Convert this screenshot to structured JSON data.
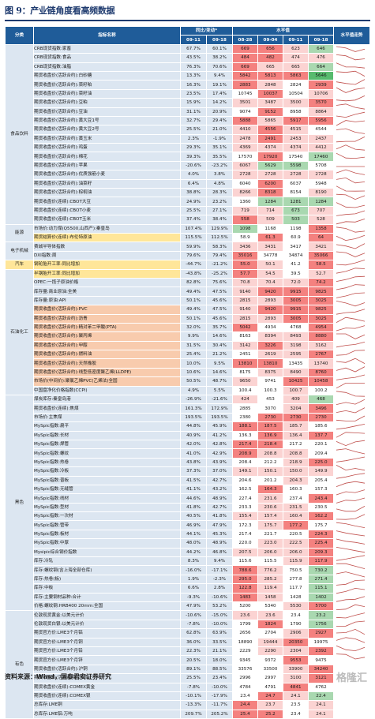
{
  "title": "图 9：产业链角度看高频数据",
  "source": "资料来源：Wind，国泰君安证券研究",
  "watermark": "格隆汇",
  "headers": {
    "category": "分类",
    "indicator": "指标名称",
    "yoy": "同比/变动*",
    "level": "水平值",
    "trend": "水平值走势",
    "dates_yoy": [
      "09-11",
      "09-18"
    ],
    "dates_level": [
      "08-28",
      "09-04",
      "09-11",
      "09-18"
    ]
  },
  "colors": {
    "header": "#1f5c99",
    "name_bg": "#dce6f1",
    "highlight": "#ffe699",
    "red": "#f4817f",
    "green": "#57bb6e"
  },
  "groups": [
    {
      "name": "食品饮料",
      "rows": [
        [
          "CRB现货指数:家畜",
          "67.7%",
          "60.1%",
          "669",
          "656",
          "623",
          "646",
          "r",
          "r",
          "p",
          "g"
        ],
        [
          "CRB现货指数:食品",
          "43.5%",
          "38.2%",
          "484",
          "482",
          "474",
          "476",
          "r",
          "r",
          "p",
          "p"
        ],
        [
          "CRB现货指数:油脂",
          "76.3%",
          "70.6%",
          "669",
          "665",
          "665",
          "664",
          "r",
          "p",
          "p",
          "g"
        ],
        [
          "期货收盘价(活跃合约):白砂糖",
          "13.3%",
          "9.4%",
          "5842",
          "5813",
          "5863",
          "5646",
          "r",
          "r",
          "r",
          "G"
        ],
        [
          "期货收盘价(活跃合约):菜籽粕",
          "16.3%",
          "19.1%",
          "2883",
          "2848",
          "2824",
          "2939",
          "r",
          "p",
          "w",
          "r"
        ],
        [
          "期货收盘价(活跃合约):菜籽油",
          "23.5%",
          "17.4%",
          "10745",
          "10037",
          "10504",
          "10706",
          "w",
          "r",
          "w",
          "p"
        ],
        [
          "期货收盘价(活跃合约):豆粕",
          "15.9%",
          "14.2%",
          "3501",
          "3487",
          "3500",
          "3570",
          "p",
          "p",
          "p",
          "r"
        ],
        [
          "期货收盘价(活跃合约):豆油",
          "31.1%",
          "20.9%",
          "9074",
          "9152",
          "8958",
          "8864",
          "w",
          "r",
          "w",
          "p"
        ],
        [
          "期货收盘价(活跃合约):黄大豆1号",
          "32.7%",
          "29.4%",
          "5888",
          "5865",
          "5917",
          "5956",
          "r",
          "p",
          "r",
          "r"
        ],
        [
          "期货收盘价(活跃合约):黄大豆2号",
          "25.5%",
          "21.0%",
          "4410",
          "4556",
          "4515",
          "4544",
          "p",
          "r",
          "p",
          "w"
        ],
        [
          "期货收盘价(活跃合约):黄玉米",
          "2.3%",
          "-1.9%",
          "2478",
          "2491",
          "2453",
          "2437",
          "p",
          "r",
          "p",
          "p"
        ],
        [
          "期货收盘价(活跃合约):鸡蛋",
          "29.3%",
          "35.1%",
          "4369",
          "4374",
          "4374",
          "4412",
          "p",
          "p",
          "p",
          "p"
        ],
        [
          "期货收盘价(活跃合约):棉花",
          "39.3%",
          "35.5%",
          "17570",
          "17920",
          "17540",
          "17460",
          "w",
          "r",
          "w",
          "g"
        ],
        [
          "期货收盘价(活跃合约):苹果",
          "-20.6%",
          "-23.2%",
          "6067",
          "5629",
          "5598",
          "5708",
          "p",
          "g",
          "g",
          "w"
        ],
        [
          "期货收盘价(活跃合约):优质强筋小麦",
          "4.0%",
          "3.8%",
          "2728",
          "2728",
          "2728",
          "2728",
          "p",
          "p",
          "p",
          "p"
        ],
        [
          "期货收盘价(活跃合约):油菜籽",
          "6.4%",
          "4.8%",
          "6040",
          "6200",
          "6037",
          "5948",
          "w",
          "r",
          "w",
          "w"
        ],
        [
          "期货收盘价(活跃合约):棕榈油",
          "38.8%",
          "28.3%",
          "8266",
          "8318",
          "8154",
          "8190",
          "p",
          "r",
          "w",
          "p"
        ],
        [
          "期货收盘价(连续):CBOT大豆",
          "24.9%",
          "23.2%",
          "1360",
          "1284",
          "1281",
          "1284",
          "w",
          "g",
          "g",
          "g"
        ],
        [
          "期货收盘价(连续):CBOT小麦",
          "25.5%",
          "27.1%",
          "719",
          "714",
          "673",
          "707",
          "p",
          "p",
          "g",
          "p"
        ],
        [
          "期货收盘价(连续):CBOT玉米",
          "37.4%",
          "38.4%",
          "558",
          "509",
          "503",
          "528",
          "r",
          "p",
          "g",
          "p"
        ]
      ]
    },
    {
      "name": "能源",
      "rows": [
        [
          "市场价:动力煤(Q5500,山西产):秦皇岛",
          "107.4%",
          "129.9%",
          "1098",
          "1168",
          "1198",
          "1358",
          "g",
          "w",
          "w",
          "r"
        ],
        [
          "期货结算价(连续):布伦特原油",
          "115.5%",
          "112.5%",
          "58.9",
          "61.3",
          "60.9",
          "64",
          "w",
          "r",
          "w",
          "r"
        ]
      ]
    },
    {
      "name": "电子机械",
      "rows": [
        [
          "费城半导体指数",
          "59.9%",
          "58.3%",
          "3436",
          "3431",
          "3417",
          "3421",
          "p",
          "p",
          "w",
          "p"
        ],
        [
          "DXI指数:周",
          "79.6%",
          "79.4%",
          "35016",
          "34778",
          "34874",
          "35066",
          "r",
          "w",
          "w",
          "r"
        ]
      ]
    },
    {
      "name": "汽车",
      "rows": [
        [
          "钢轮胎开工率:同比增加",
          "-44.7%",
          "-21.2%",
          "55.0",
          "50.1",
          "41.2",
          "58.5",
          "r",
          "p",
          "w",
          "r"
        ]
      ]
    },
    {
      "name": "石油化工",
      "rows": [
        [
          "半钢胎开工率:同比增加",
          "-43.8%",
          "-25.2%",
          "57.7",
          "54.5",
          "39.5",
          "52.7",
          "r",
          "p",
          "w",
          "p"
        ],
        [
          "OPEC:一揽子原油价格",
          "82.8%",
          "75.6%",
          "70.8",
          "70.4",
          "72.0",
          "74.2",
          "p",
          "p",
          "p",
          "r"
        ],
        [
          "库存量:商业原油:全美",
          "49.4%",
          "47.5%",
          "9140",
          "9420",
          "9915",
          "9825",
          "p",
          "r",
          "r",
          "r"
        ],
        [
          "库存量:原油:API",
          "50.1%",
          "45.6%",
          "2815",
          "2893",
          "3005",
          "3025",
          "p",
          "p",
          "r",
          "r"
        ],
        [
          "期货收盘价(活跃合约):PVC",
          "49.4%",
          "47.5%",
          "9140",
          "9420",
          "9915",
          "9825",
          "p",
          "r",
          "r",
          "r"
        ],
        [
          "期货收盘价(活跃合约):沥青",
          "50.1%",
          "45.6%",
          "2815",
          "2893",
          "3005",
          "3025",
          "p",
          "p",
          "r",
          "r"
        ],
        [
          "期货收盘价(活跃合约):精对苯二甲酸(PTA)",
          "32.0%",
          "35.7%",
          "5042",
          "4934",
          "4768",
          "4954",
          "r",
          "w",
          "w",
          "r"
        ],
        [
          "期货收盘价(活跃合约):聚丙烯",
          "9.9%",
          "14.6%",
          "8163",
          "8394",
          "8493",
          "8880",
          "w",
          "p",
          "p",
          "r"
        ],
        [
          "期货收盘价(活跃合约):甲醇",
          "31.5%",
          "30.4%",
          "3142",
          "3226",
          "3198",
          "3162",
          "p",
          "r",
          "p",
          "p"
        ],
        [
          "期货收盘价(活跃合约):燃料油",
          "25.4%",
          "21.2%",
          "2451",
          "2619",
          "2595",
          "2767",
          "w",
          "p",
          "p",
          "r"
        ],
        [
          "期货收盘价(活跃合约):天然橡胶",
          "10.0%",
          "9.5%",
          "13810",
          "13810",
          "13435",
          "13740",
          "r",
          "r",
          "w",
          "p"
        ],
        [
          "期货收盘价(活跃合约):线型低密度聚乙烯(LLDPE)",
          "10.6%",
          "14.6%",
          "8175",
          "8375",
          "8490",
          "8760",
          "w",
          "p",
          "p",
          "r"
        ],
        [
          "市场价(中间价):聚氯乙烯PVC(乙烯法)全国",
          "50.5%",
          "48.7%",
          "9650",
          "9741",
          "10425",
          "10458",
          "p",
          "w",
          "r",
          "r"
        ],
        [
          "中国盘净化价格指数(CCPI)",
          "4.9%",
          "5.5%",
          "100.4",
          "100.3",
          "100.7",
          "100.2",
          "w",
          "w",
          "p",
          "w"
        ]
      ]
    },
    {
      "name": "黑色",
      "rows": [
        [
          "煤炭库存:秦皇岛港",
          "-26.9%",
          "-21.6%",
          "424",
          "453",
          "409",
          "468",
          "p",
          "w",
          "p",
          "g"
        ],
        [
          "期货收盘价(连续):焦煤",
          "161.3%",
          "172.9%",
          "2885",
          "3070",
          "3204",
          "3496",
          "w",
          "w",
          "p",
          "r"
        ],
        [
          "市场价:主焦煤",
          "193.5%",
          "193.5%",
          "2380",
          "2730",
          "2730",
          "2730",
          "w",
          "r",
          "r",
          "r"
        ],
        [
          "MySpic指数:扁平",
          "44.8%",
          "45.9%",
          "188.1",
          "187.5",
          "185.7",
          "185.6",
          "r",
          "r",
          "p",
          "w"
        ],
        [
          "MySpic指数:长材",
          "40.9%",
          "41.2%",
          "136.3",
          "136.9",
          "136.4",
          "137.7",
          "w",
          "r",
          "p",
          "r"
        ],
        [
          "MySpic指数:焊管",
          "42.0%",
          "42.8%",
          "217.4",
          "218.4",
          "217.2",
          "220.1",
          "r",
          "r",
          "w",
          "w"
        ],
        [
          "MySpic指数:螺纹",
          "41.0%",
          "42.9%",
          "208.9",
          "208.8",
          "208.8",
          "209.4",
          "r",
          "p",
          "p",
          "w"
        ],
        [
          "MySpic指数:热卷",
          "43.8%",
          "43.9%",
          "208.4",
          "212.2",
          "218.9",
          "225.0",
          "w",
          "w",
          "p",
          "r"
        ],
        [
          "MySpic指数:冷板",
          "37.3%",
          "37.0%",
          "149.1",
          "150.1",
          "150.0",
          "149.9",
          "p",
          "p",
          "p",
          "p"
        ],
        [
          "MySpic指数:普板",
          "41.5%",
          "42.7%",
          "204.6",
          "201.2",
          "204.3",
          "205.4",
          "w",
          "w",
          "p",
          "w"
        ],
        [
          "MySpic指数:无缝管",
          "41.1%",
          "43.2%",
          "162.5",
          "164.3",
          "160.3",
          "157.3",
          "w",
          "r",
          "w",
          "w"
        ],
        [
          "MySpic指数:线材",
          "44.6%",
          "48.9%",
          "227.4",
          "231.6",
          "237.4",
          "243.4",
          "w",
          "p",
          "w",
          "r"
        ],
        [
          "MySpic指数:型材",
          "41.8%",
          "42.7%",
          "233.3",
          "230.6",
          "231.5",
          "230.5",
          "w",
          "p",
          "p",
          "w"
        ],
        [
          "MySpic指数:一次材",
          "40.5%",
          "41.8%",
          "155.4",
          "157.4",
          "160.4",
          "162.2",
          "p",
          "p",
          "p",
          "r"
        ],
        [
          "MySpic指数:管带",
          "46.9%",
          "47.9%",
          "172.3",
          "175.7",
          "177.2",
          "175.7",
          "w",
          "p",
          "r",
          "w"
        ],
        [
          "MySpic指数:板材",
          "44.1%",
          "45.3%",
          "217.4",
          "221.7",
          "220.5",
          "224.3",
          "w",
          "w",
          "w",
          "r"
        ],
        [
          "MySpic指数:中厚",
          "48.0%",
          "48.9%",
          "220.0",
          "223.0",
          "222.5",
          "225.4",
          "w",
          "p",
          "p",
          "r"
        ],
        [
          "Mysipic综合钢价指数",
          "44.2%",
          "46.8%",
          "207.5",
          "206.0",
          "206.0",
          "209.3",
          "p",
          "p",
          "p",
          "r"
        ],
        [
          "库存:冷轧",
          "8.3%",
          "9.4%",
          "115.6",
          "115.5",
          "115.9",
          "117.9",
          "w",
          "w",
          "p",
          "r"
        ],
        [
          "库存:螺纹钢(含上海全部仓库)",
          "-16.0%",
          "-17.1%",
          "788.6",
          "776.2",
          "750.5",
          "730.2",
          "r",
          "p",
          "w",
          "g"
        ],
        [
          "库存:热卷(板)",
          "1.9%",
          "-2.3%",
          "295.0",
          "285.2",
          "277.8",
          "271.4",
          "r",
          "p",
          "w",
          "g"
        ],
        [
          "库存:中板",
          "6.6%",
          "2.8%",
          "122.8",
          "119.4",
          "117.7",
          "115.1",
          "r",
          "p",
          "w",
          "g"
        ],
        [
          "库存:主要钢材品种:合计",
          "-9.3%",
          "-10.6%",
          "1483",
          "1458",
          "1428",
          "1402",
          "r",
          "p",
          "w",
          "g"
        ],
        [
          "价格:螺纹钢:HRB400 20mm:全国",
          "47.9%",
          "53.2%",
          "5200",
          "5340",
          "5530",
          "5700",
          "w",
          "w",
          "p",
          "r"
        ]
      ]
    },
    {
      "name": "有色",
      "rows": [
        [
          "伦敦现货黄金:以美元计价",
          "-10.6%",
          "-15.0%",
          "23.6",
          "23.6",
          "23.4",
          "23.2",
          "p",
          "p",
          "w",
          "g"
        ],
        [
          "伦敦现货白银:以美元计价",
          "-7.8%",
          "-10.0%",
          "1799",
          "1824",
          "1790",
          "1756",
          "w",
          "r",
          "w",
          "g"
        ],
        [
          "期货官方价:LME3个月铝",
          "62.8%",
          "63.9%",
          "2656",
          "2704",
          "2906",
          "2927",
          "w",
          "w",
          "p",
          "r"
        ],
        [
          "期货官方价:LME3个月铜",
          "36.0%",
          "33.5%",
          "18890",
          "19444",
          "20350",
          "19975",
          "w",
          "p",
          "r",
          "w"
        ],
        [
          "期货官方价:LME3个月铅",
          "22.3%",
          "21.1%",
          "2229",
          "2290",
          "2304",
          "2392",
          "w",
          "p",
          "p",
          "r"
        ],
        [
          "期货官方价:LME3个月锌",
          "20.5%",
          "18.0%",
          "9345",
          "9372",
          "9553",
          "9475",
          "w",
          "w",
          "r",
          "w"
        ],
        [
          "期货收盘价(活跃合约):沪铜",
          "89.1%",
          "88.5%",
          "33576",
          "33500",
          "33900",
          "34240",
          "w",
          "w",
          "p",
          "r"
        ],
        [
          "期货收盘价(活跃合约):沪铝",
          "25.5%",
          "23.4%",
          "2996",
          "2997",
          "3100",
          "3121",
          "w",
          "w",
          "p",
          "r"
        ],
        [
          "期货收盘价(连续):COMEX黄金",
          "-7.8%",
          "-10.0%",
          "4784",
          "4791",
          "4841",
          "4762",
          "w",
          "w",
          "r",
          "w"
        ],
        [
          "期货收盘价(连续):COMEX银",
          "-10.1%",
          "-17.9%",
          "23.4",
          "24.7",
          "24.1",
          "22.4",
          "w",
          "r",
          "p",
          "g"
        ],
        [
          "总库存:LME铜",
          "-13.3%",
          "-11.7%",
          "24.4",
          "23.7",
          "23.5",
          "24.1",
          "r",
          "p",
          "w",
          "p"
        ],
        [
          "总库存:LME铝:万吨",
          "209.7%",
          "205.2%",
          "25.4",
          "25.2",
          "23.4",
          "24.1",
          "r",
          "r",
          "w",
          "p"
        ]
      ]
    }
  ]
}
